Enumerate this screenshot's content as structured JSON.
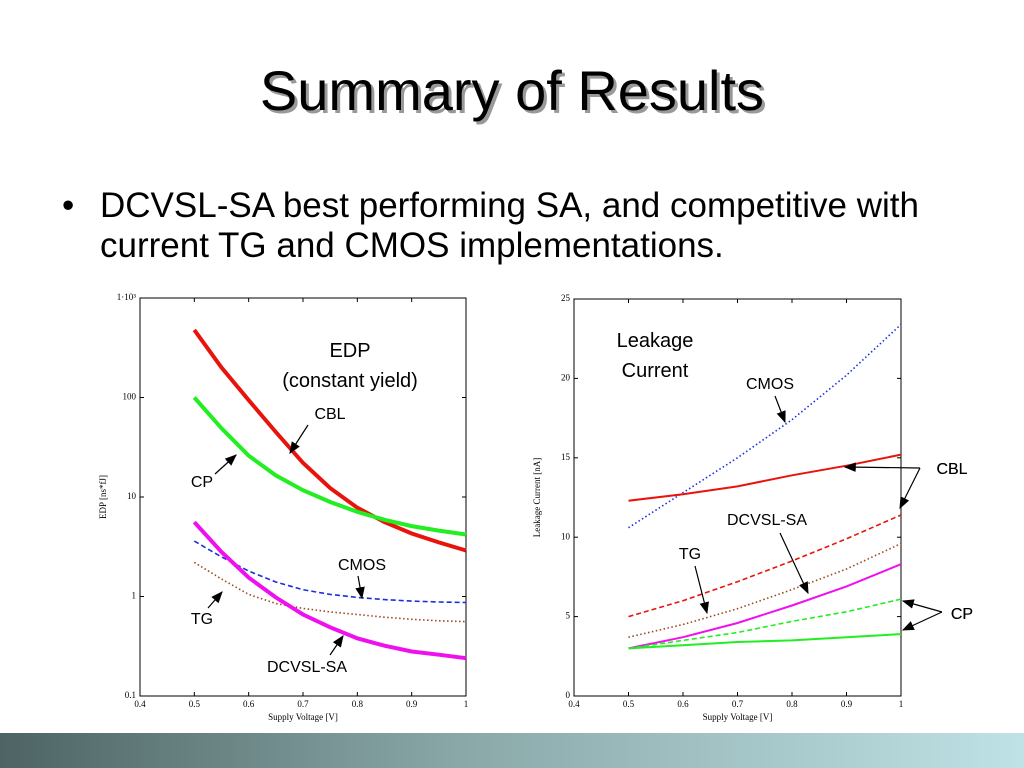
{
  "title": "Summary of Results",
  "bullet": "DCVSL-SA best performing SA, and competitive with current TG and CMOS implementations.",
  "chart_data": [
    {
      "type": "line",
      "title": "EDP",
      "subtitle": "(constant yield)",
      "x_label": "Supply Voltage [V]",
      "y_label": "EDP [ns*fJ]",
      "ylog": true,
      "xlim": [
        0.4,
        1
      ],
      "xticks": [
        0.4,
        0.5,
        0.6,
        0.7,
        0.8,
        0.9,
        1
      ],
      "ylim": [
        0.1,
        1000
      ],
      "yticks": [
        0.1,
        1,
        10,
        100,
        {
          "value": 1000,
          "label": "1·10³"
        }
      ],
      "x": [
        0.5,
        0.55,
        0.6,
        0.65,
        0.7,
        0.75,
        0.8,
        0.85,
        0.9,
        0.95,
        1
      ],
      "series": [
        {
          "name": "CBL",
          "color": "#e8140c",
          "dash": "solid",
          "values": [
            478,
            200,
            94,
            45,
            22,
            12.3,
            7.8,
            5.6,
            4.3,
            3.5,
            2.9
          ]
        },
        {
          "name": "CP",
          "color": "#22ee22",
          "dash": "solid",
          "values": [
            100,
            49,
            26,
            16.5,
            11.7,
            8.9,
            7.1,
            5.9,
            5.1,
            4.6,
            4.2
          ]
        },
        {
          "name": "CMOS",
          "color": "#1a2ee0",
          "dash": "dashed",
          "values": [
            3.6,
            2.5,
            1.8,
            1.4,
            1.17,
            1.05,
            0.98,
            0.93,
            0.9,
            0.88,
            0.87
          ]
        },
        {
          "name": "TG",
          "color": "#9a4a1a",
          "dash": "dotted",
          "values": [
            2.2,
            1.5,
            1.05,
            0.85,
            0.76,
            0.7,
            0.66,
            0.62,
            0.59,
            0.57,
            0.56
          ]
        },
        {
          "name": "DCVSL-SA",
          "color": "#ee11ee",
          "dash": "solid",
          "values": [
            5.6,
            2.8,
            1.55,
            0.98,
            0.66,
            0.49,
            0.38,
            0.32,
            0.28,
            0.26,
            0.24
          ]
        }
      ]
    },
    {
      "type": "line",
      "title": "Leakage Current",
      "x_label": "Supply Voltage [V]",
      "y_label": "Leakage Current [nA]",
      "ylog": false,
      "xlim": [
        0.4,
        1
      ],
      "xticks": [
        0.4,
        0.5,
        0.6,
        0.7,
        0.8,
        0.9,
        1
      ],
      "ylim": [
        0,
        25
      ],
      "yticks": [
        0,
        5,
        10,
        15,
        20,
        25
      ],
      "x": [
        0.5,
        0.6,
        0.7,
        0.8,
        0.9,
        1
      ],
      "series": [
        {
          "name": "CMOS",
          "color": "#1a2ee0",
          "dash": "dotted",
          "values": [
            10.6,
            12.8,
            15.0,
            17.4,
            20.2,
            23.4
          ]
        },
        {
          "name": "CBL",
          "color": "#e8140c",
          "dash": "solid",
          "values": [
            12.3,
            12.7,
            13.2,
            13.9,
            14.5,
            15.2
          ]
        },
        {
          "name": "CBL",
          "color": "#e8140c",
          "dash": "dashed",
          "values": [
            5.0,
            6.0,
            7.2,
            8.5,
            9.9,
            11.4
          ]
        },
        {
          "name": "TG",
          "color": "#9a4a1a",
          "dash": "dotted",
          "values": [
            3.7,
            4.5,
            5.5,
            6.7,
            8.0,
            9.6
          ]
        },
        {
          "name": "DCVSL-SA",
          "color": "#ee11ee",
          "dash": "solid",
          "values": [
            3.0,
            3.7,
            4.6,
            5.7,
            6.9,
            8.3
          ]
        },
        {
          "name": "CP",
          "color": "#22ee22",
          "dash": "dashed",
          "values": [
            3.0,
            3.5,
            4.0,
            4.7,
            5.3,
            6.1
          ]
        },
        {
          "name": "CP",
          "color": "#22ee22",
          "dash": "solid",
          "values": [
            3.0,
            3.2,
            3.4,
            3.5,
            3.7,
            3.9
          ]
        }
      ]
    }
  ]
}
